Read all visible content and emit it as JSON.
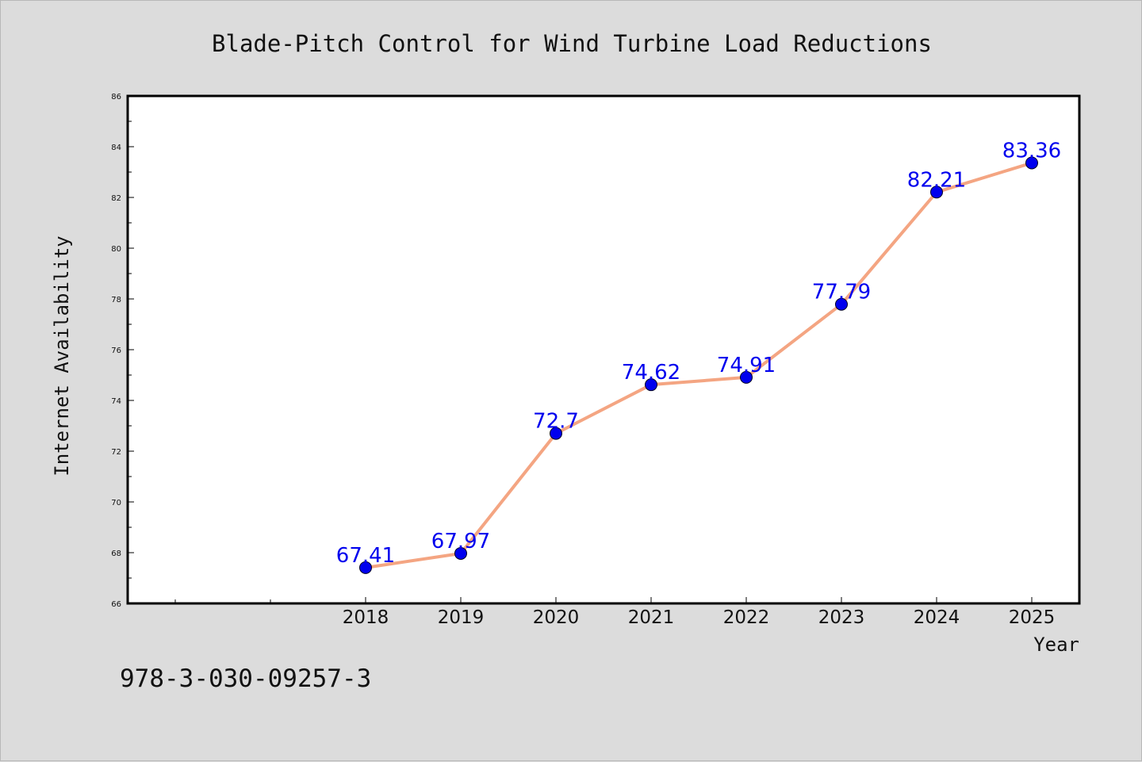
{
  "isbn": "978-3-030-09257-3",
  "colors": {
    "line": "#f4a582",
    "marker": "#0000ee",
    "data_label": "#0000ee",
    "plot_background": "#ffffff",
    "figure_background": "#dcdcdc"
  },
  "chart_data": {
    "type": "line",
    "title": "Blade-Pitch Control for Wind Turbine Load Reductions",
    "xlabel": "Year",
    "ylabel": "Internet Availability",
    "x": [
      "2018",
      "2019",
      "2020",
      "2021",
      "2022",
      "2023",
      "2024",
      "2025"
    ],
    "series": [
      {
        "values": [
          67.41,
          67.97,
          72.7,
          74.62,
          74.91,
          77.79,
          82.21,
          83.36
        ],
        "labels": [
          "67.41",
          "67.97",
          "72.7",
          "74.62",
          "74.91",
          "77.79",
          "82.21",
          "83.36"
        ]
      }
    ],
    "ylim": [
      66,
      86
    ],
    "yticks": [
      "66",
      "68",
      "70",
      "72",
      "74",
      "76",
      "78",
      "80",
      "82",
      "84",
      "86"
    ],
    "grid": false,
    "legend": "none"
  }
}
